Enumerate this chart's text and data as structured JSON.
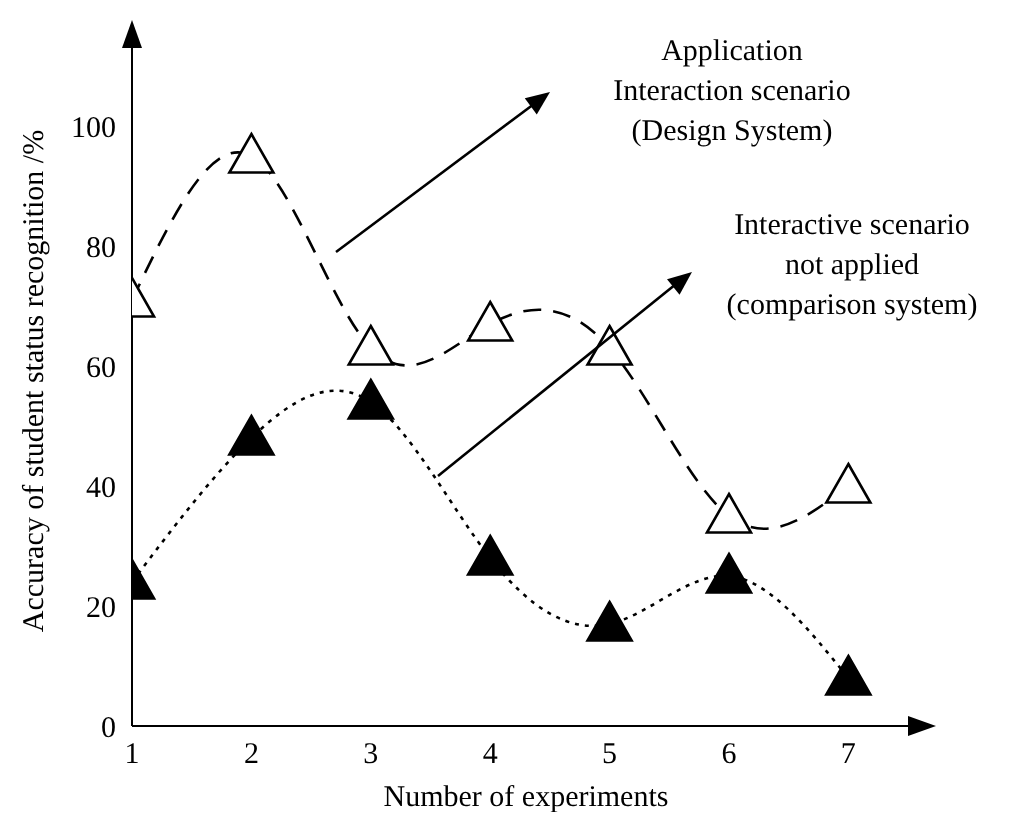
{
  "chart_data": {
    "type": "line",
    "xlabel": "Number of experiments",
    "ylabel": "Accuracy of student status recognition /%",
    "x": [
      1,
      2,
      3,
      4,
      5,
      6,
      7
    ],
    "series": [
      {
        "color": "#000000",
        "line_style": "dashed",
        "values": [
          71,
          95,
          63,
          67,
          63,
          35,
          40
        ]
      },
      {
        "color": "#000000",
        "line_style": "dotted",
        "values": [
          24,
          48,
          54,
          28,
          17,
          25,
          8
        ]
      }
    ],
    "annotations": [
      "Application\nInteraction scenario\n(Design System)",
      "Interactive scenario\nnot applied\n(comparison system)"
    ],
    "xlim": [
      1,
      7.6
    ],
    "xticks": [
      1,
      2,
      3,
      4,
      5,
      6,
      7
    ],
    "ylim": [
      0,
      115
    ],
    "yticks": [
      0,
      20,
      40,
      60,
      80,
      100
    ],
    "marker": "triangle",
    "grid": false,
    "legend": false
  }
}
